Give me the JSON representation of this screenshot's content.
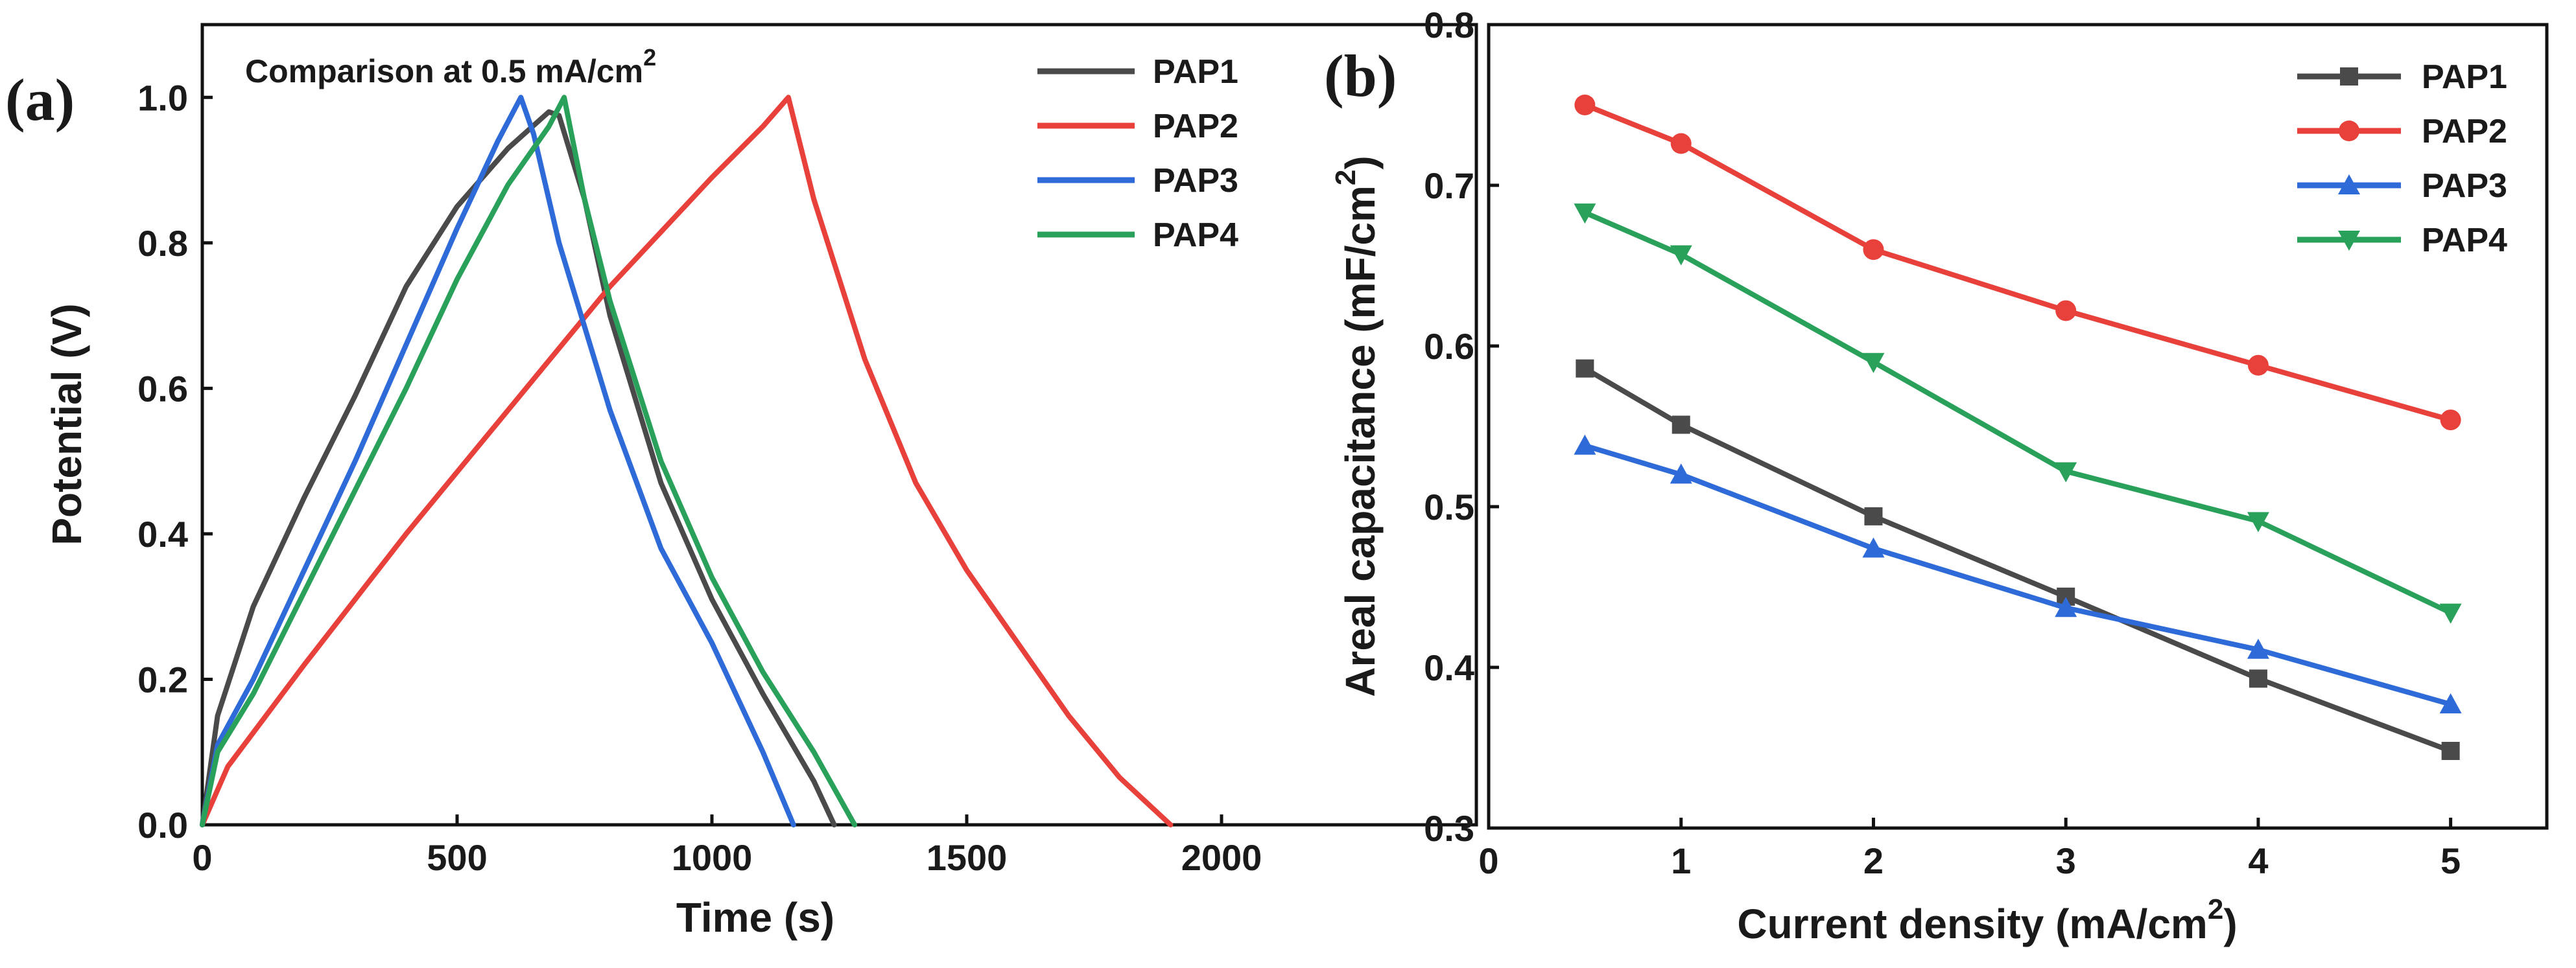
{
  "figure": {
    "panels": [
      {
        "tag": "(a)"
      },
      {
        "tag": "(b)"
      }
    ]
  },
  "chart_data": [
    {
      "type": "line",
      "panel": "(a)",
      "title": "",
      "annotation": "Comparison at 0.5 mA/cm",
      "annotation_sup": "2",
      "xlabel": "Time (s)",
      "ylabel": "Potential (V)",
      "xlim": [
        0,
        2500
      ],
      "ylim": [
        0,
        1.1
      ],
      "xticks": [
        0,
        500,
        1000,
        1500,
        2000
      ],
      "yticks": [
        0.0,
        0.2,
        0.4,
        0.6,
        0.8,
        1.0
      ],
      "ytick_labels": [
        "0.0",
        "0.2",
        "0.4",
        "0.6",
        "0.8",
        "1.0"
      ],
      "legend_position": "top-right",
      "series": [
        {
          "name": "PAP1",
          "color": "#4a4a4a",
          "points": [
            [
              0,
              0
            ],
            [
              30,
              0.15
            ],
            [
              100,
              0.3
            ],
            [
              200,
              0.45
            ],
            [
              300,
              0.59
            ],
            [
              400,
              0.74
            ],
            [
              500,
              0.85
            ],
            [
              600,
              0.93
            ],
            [
              680,
              0.98
            ],
            [
              700,
              0.975
            ],
            [
              750,
              0.86
            ],
            [
              800,
              0.7
            ],
            [
              900,
              0.47
            ],
            [
              1000,
              0.31
            ],
            [
              1100,
              0.18
            ],
            [
              1200,
              0.06
            ],
            [
              1240,
              0
            ]
          ]
        },
        {
          "name": "PAP2",
          "color": "#e8403a",
          "points": [
            [
              0,
              0
            ],
            [
              50,
              0.08
            ],
            [
              200,
              0.22
            ],
            [
              400,
              0.4
            ],
            [
              600,
              0.57
            ],
            [
              800,
              0.74
            ],
            [
              1000,
              0.89
            ],
            [
              1100,
              0.96
            ],
            [
              1150,
              1.0
            ],
            [
              1200,
              0.86
            ],
            [
              1300,
              0.64
            ],
            [
              1400,
              0.47
            ],
            [
              1500,
              0.35
            ],
            [
              1600,
              0.25
            ],
            [
              1700,
              0.15
            ],
            [
              1800,
              0.065
            ],
            [
              1900,
              0
            ]
          ]
        },
        {
          "name": "PAP3",
          "color": "#2f6bd8",
          "points": [
            [
              0,
              0
            ],
            [
              30,
              0.11
            ],
            [
              100,
              0.2
            ],
            [
              200,
              0.35
            ],
            [
              300,
              0.5
            ],
            [
              400,
              0.66
            ],
            [
              500,
              0.82
            ],
            [
              580,
              0.94
            ],
            [
              625,
              1.0
            ],
            [
              650,
              0.95
            ],
            [
              700,
              0.8
            ],
            [
              800,
              0.57
            ],
            [
              900,
              0.38
            ],
            [
              1000,
              0.25
            ],
            [
              1100,
              0.1
            ],
            [
              1160,
              0
            ]
          ]
        },
        {
          "name": "PAP4",
          "color": "#2aa15a",
          "points": [
            [
              0,
              0
            ],
            [
              30,
              0.1
            ],
            [
              100,
              0.18
            ],
            [
              200,
              0.32
            ],
            [
              300,
              0.46
            ],
            [
              400,
              0.6
            ],
            [
              500,
              0.75
            ],
            [
              600,
              0.88
            ],
            [
              680,
              0.96
            ],
            [
              710,
              1.0
            ],
            [
              750,
              0.86
            ],
            [
              800,
              0.72
            ],
            [
              900,
              0.5
            ],
            [
              1000,
              0.34
            ],
            [
              1100,
              0.21
            ],
            [
              1200,
              0.1
            ],
            [
              1280,
              0
            ]
          ]
        }
      ]
    },
    {
      "type": "line",
      "panel": "(b)",
      "title": "",
      "xlabel": "Current density (mA/cm",
      "xlabel_sup": "2",
      "xlabel_end": ")",
      "ylabel": "Areal capacitance (mF/cm",
      "ylabel_sup": "2",
      "ylabel_end": ")",
      "xlim": [
        0,
        5.5
      ],
      "ylim": [
        0.3,
        0.8
      ],
      "xticks": [
        0,
        1,
        2,
        3,
        4,
        5
      ],
      "yticks": [
        0.3,
        0.4,
        0.5,
        0.6,
        0.7,
        0.8
      ],
      "ytick_labels": [
        "0.3",
        "0.4",
        "0.5",
        "0.6",
        "0.7",
        "0.8"
      ],
      "legend_position": "top-right",
      "x": [
        0.5,
        1,
        2,
        3,
        4,
        5
      ],
      "series": [
        {
          "name": "PAP1",
          "color": "#4a4a4a",
          "marker": "square",
          "values": [
            0.586,
            0.551,
            0.494,
            0.444,
            0.393,
            0.348
          ]
        },
        {
          "name": "PAP2",
          "color": "#e8403a",
          "marker": "circle",
          "values": [
            0.75,
            0.726,
            0.66,
            0.622,
            0.588,
            0.554
          ]
        },
        {
          "name": "PAP3",
          "color": "#2f6bd8",
          "marker": "triangle-up",
          "values": [
            0.538,
            0.52,
            0.474,
            0.437,
            0.411,
            0.377
          ]
        },
        {
          "name": "PAP4",
          "color": "#2aa15a",
          "marker": "triangle-down",
          "values": [
            0.683,
            0.657,
            0.59,
            0.522,
            0.491,
            0.434
          ]
        }
      ]
    }
  ]
}
